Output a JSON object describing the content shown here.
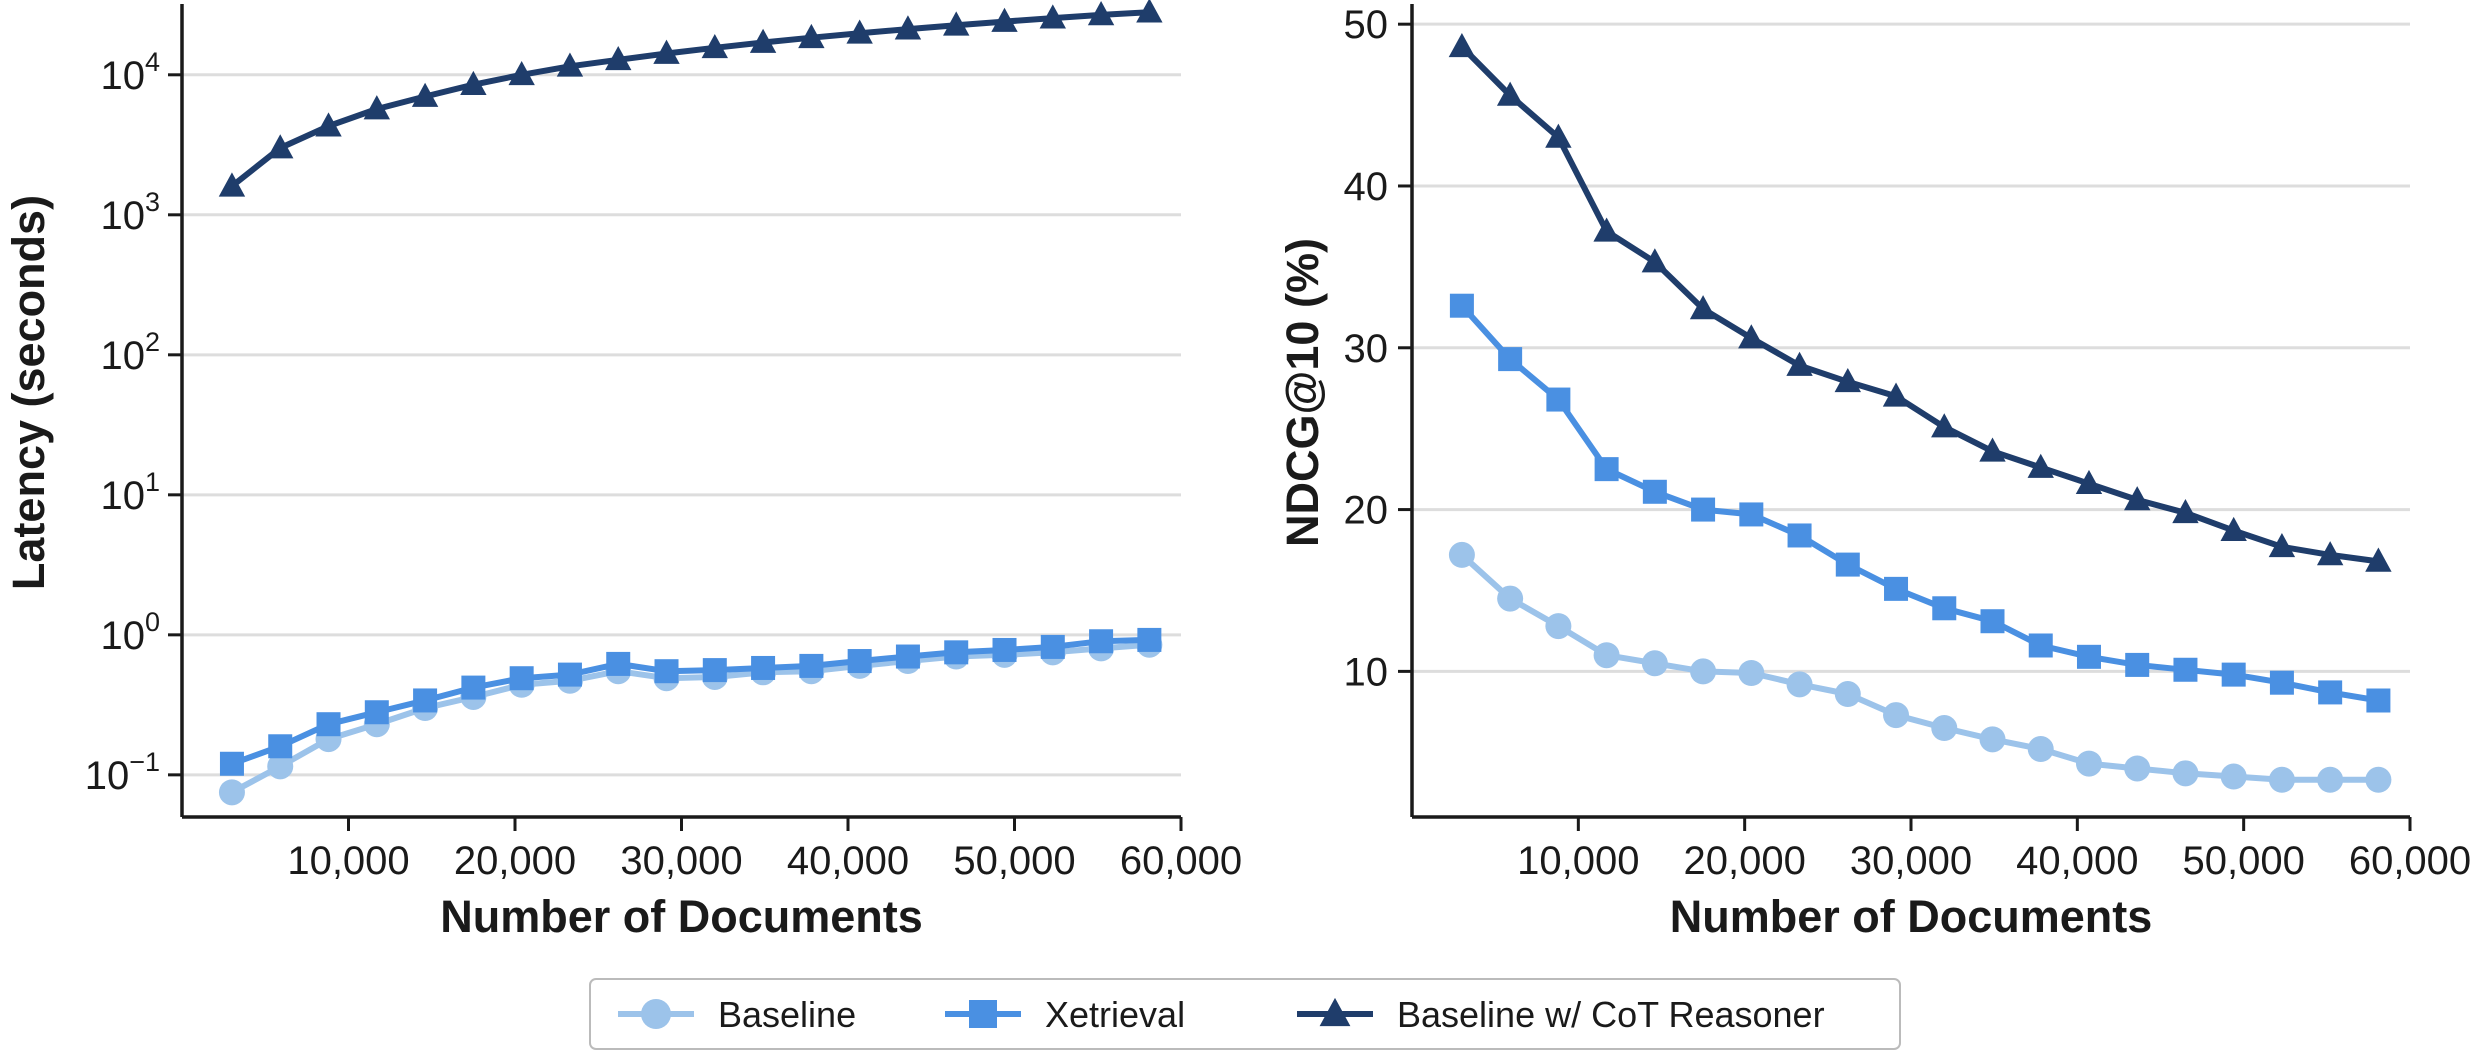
{
  "colors": {
    "baseline": "#9cc3ea",
    "xetrieval": "#4a90e2",
    "cot": "#1f3d6b",
    "grid": "#dddddd",
    "axis": "#1a1a1a"
  },
  "chart_data": [
    {
      "type": "line",
      "xlabel": "Number of Documents",
      "ylabel": "Latency (seconds)",
      "yscale": "log",
      "ylim": [
        0.05,
        30000
      ],
      "xlim": [
        0,
        60000
      ],
      "xticks": [
        10000,
        20000,
        30000,
        40000,
        50000,
        60000
      ],
      "xtick_labels": [
        "10,000",
        "20,000",
        "30,000",
        "40,000",
        "50,000",
        "60,000"
      ],
      "yticks": [
        0.1,
        1,
        10,
        100,
        1000,
        10000
      ],
      "ytick_labels": [
        {
          "base": "10",
          "exp": "−1"
        },
        {
          "base": "10",
          "exp": "0"
        },
        {
          "base": "10",
          "exp": "1"
        },
        {
          "base": "10",
          "exp": "2"
        },
        {
          "base": "10",
          "exp": "3"
        },
        {
          "base": "10",
          "exp": "4"
        }
      ],
      "grid": "horizontal",
      "x": [
        3000,
        5900,
        8800,
        11700,
        14600,
        17500,
        20400,
        23300,
        26200,
        29100,
        32000,
        34900,
        37800,
        40700,
        43600,
        46500,
        49400,
        52300,
        55200,
        58100
      ],
      "series": [
        {
          "key": "baseline",
          "name": "Baseline",
          "marker": "circle",
          "values": [
            0.075,
            0.115,
            0.18,
            0.23,
            0.3,
            0.36,
            0.44,
            0.47,
            0.55,
            0.49,
            0.5,
            0.54,
            0.55,
            0.6,
            0.65,
            0.7,
            0.72,
            0.75,
            0.8,
            0.85
          ]
        },
        {
          "key": "xetrieval",
          "name": "Xetrieval",
          "marker": "square",
          "values": [
            0.12,
            0.16,
            0.23,
            0.28,
            0.34,
            0.42,
            0.49,
            0.52,
            0.62,
            0.55,
            0.56,
            0.58,
            0.6,
            0.65,
            0.7,
            0.75,
            0.78,
            0.82,
            0.9,
            0.92
          ]
        },
        {
          "key": "cot",
          "name": "Baseline w/ CoT Reasoner",
          "marker": "triangle",
          "values": [
            1600,
            3000,
            4300,
            5700,
            7000,
            8500,
            10000,
            11500,
            12800,
            14200,
            15600,
            17000,
            18400,
            19800,
            21200,
            22600,
            24000,
            25400,
            26800,
            28000
          ]
        }
      ]
    },
    {
      "type": "line",
      "xlabel": "Number of Documents",
      "ylabel": "NDCG@10 (%)",
      "yscale": "linear",
      "ylim": [
        1,
        51
      ],
      "xlim": [
        0,
        60000
      ],
      "xticks": [
        10000,
        20000,
        30000,
        40000,
        50000,
        60000
      ],
      "xtick_labels": [
        "10,000",
        "20,000",
        "30,000",
        "40,000",
        "50,000",
        "60,000"
      ],
      "yticks": [
        10,
        20,
        30,
        40,
        50
      ],
      "ytick_labels": [
        "10",
        "20",
        "30",
        "40",
        "50"
      ],
      "grid": "horizontal",
      "x": [
        3000,
        5900,
        8800,
        11700,
        14600,
        17500,
        20400,
        23300,
        26200,
        29100,
        32000,
        34900,
        37800,
        40700,
        43600,
        46500,
        49400,
        52300,
        55200,
        58100
      ],
      "series": [
        {
          "key": "baseline",
          "name": "Baseline",
          "marker": "circle",
          "values": [
            17.2,
            14.5,
            12.8,
            11.0,
            10.5,
            10.0,
            9.9,
            9.2,
            8.6,
            7.3,
            6.5,
            5.8,
            5.2,
            4.3,
            4.0,
            3.7,
            3.5,
            3.3,
            3.3,
            3.3
          ]
        },
        {
          "key": "xetrieval",
          "name": "Xetrieval",
          "marker": "square",
          "values": [
            32.6,
            29.3,
            26.8,
            22.5,
            21.1,
            20.0,
            19.7,
            18.4,
            16.6,
            15.1,
            13.9,
            13.1,
            11.6,
            10.9,
            10.4,
            10.1,
            9.8,
            9.3,
            8.7,
            8.2
          ]
        },
        {
          "key": "cot",
          "name": "Baseline w/ CoT Reasoner",
          "marker": "triangle",
          "values": [
            48.6,
            45.6,
            43.0,
            37.2,
            35.3,
            32.4,
            30.6,
            28.9,
            27.9,
            27.0,
            25.1,
            23.6,
            22.6,
            21.6,
            20.6,
            19.8,
            18.7,
            17.7,
            17.2,
            16.8
          ]
        }
      ]
    }
  ],
  "legend": {
    "items": [
      {
        "key": "baseline",
        "label": "Baseline",
        "marker": "circle"
      },
      {
        "key": "xetrieval",
        "label": "Xetrieval",
        "marker": "square"
      },
      {
        "key": "cot",
        "label": "Baseline w/ CoT Reasoner",
        "marker": "triangle"
      }
    ]
  }
}
